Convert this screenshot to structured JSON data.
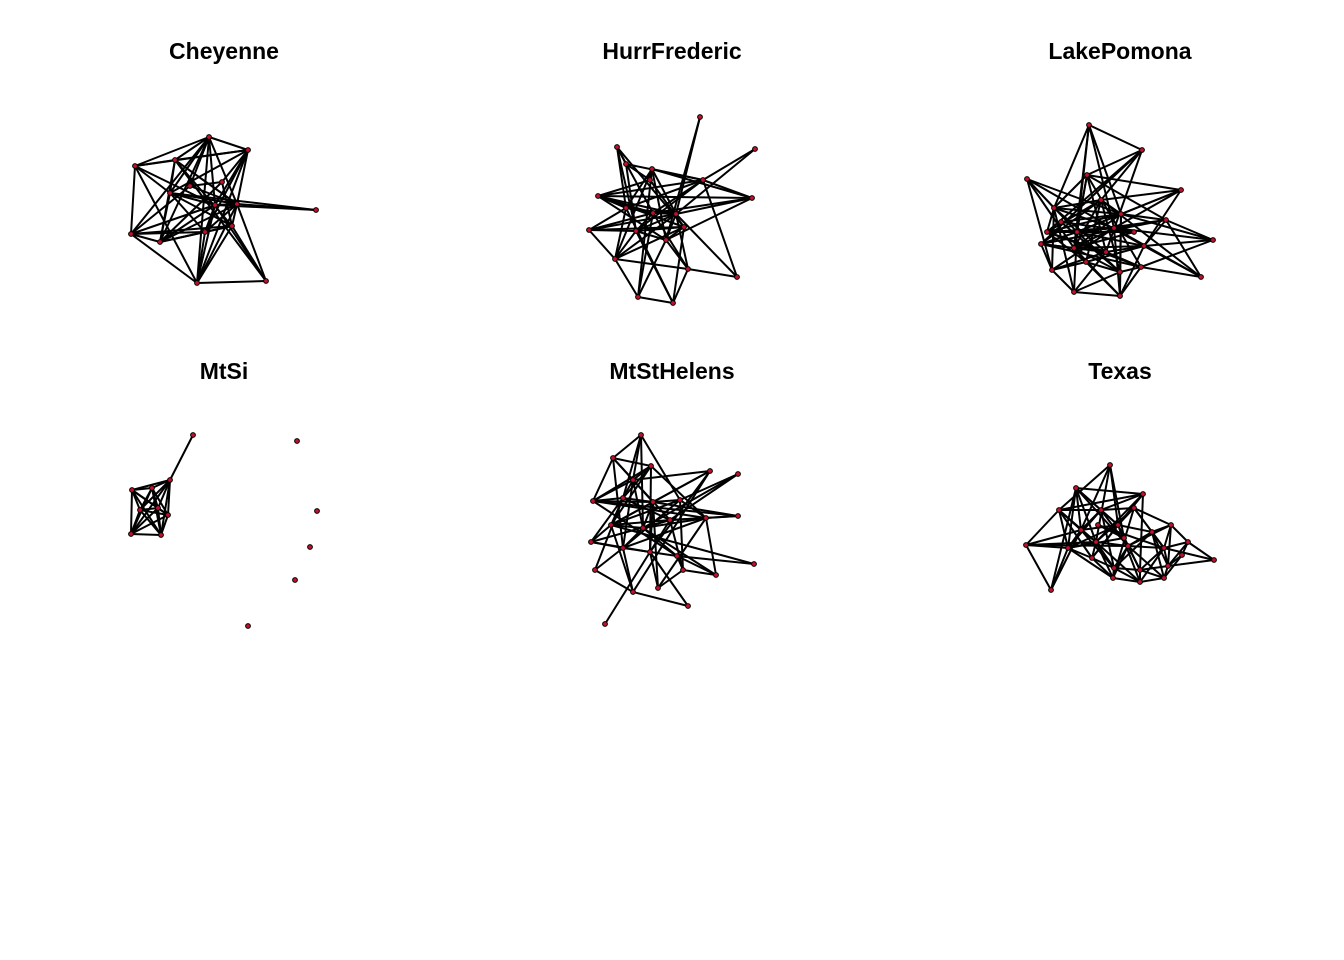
{
  "colors": {
    "edge": "#000000",
    "node_fill": "#c0102a",
    "node_stroke": "#000000",
    "background": "#ffffff"
  },
  "networks": [
    {
      "title": "Cheyenne"
    },
    {
      "title": "HurrFrederic"
    },
    {
      "title": "LakePomona"
    },
    {
      "title": "MtSi"
    },
    {
      "title": "MtStHelens"
    },
    {
      "title": "Texas"
    }
  ]
}
